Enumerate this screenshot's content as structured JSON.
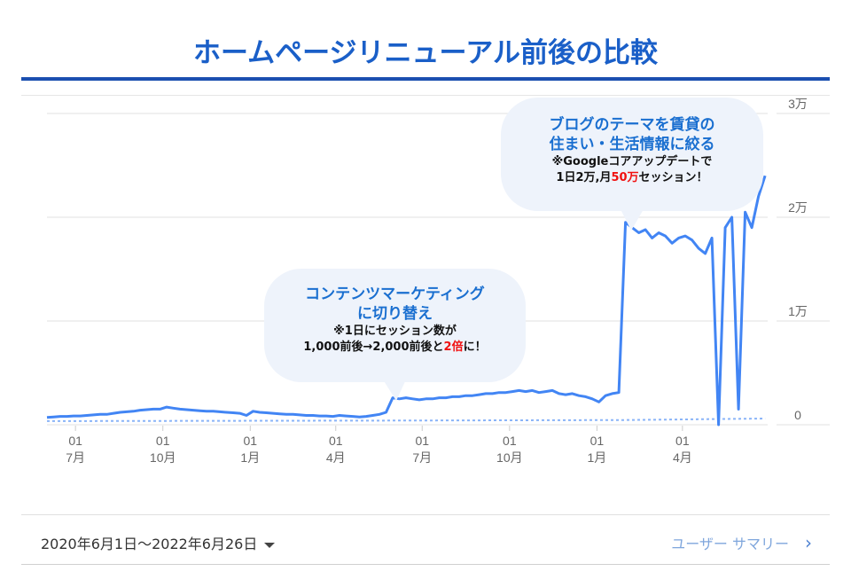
{
  "page": {
    "title": "ホームページリニューアル前後の比較"
  },
  "callouts": [
    {
      "head_lines": [
        "コンテンツマーケティング",
        "に切り替え"
      ],
      "note_line1": "※1日にセッション数が",
      "note_line2_pre": "1,000前後→2,000前後と",
      "note_line2_red": "2倍",
      "note_line2_post": "に！"
    },
    {
      "head_lines": [
        "ブログのテーマを賃貸の",
        "住まい・生活情報に絞る"
      ],
      "note_line1": "※Googleコアアップデートで",
      "note_line2_pre": "1日2万,月",
      "note_line2_red": "50万",
      "note_line2_post": "セッション！"
    }
  ],
  "footer": {
    "date_range": "2020年6月1日～2022年6月26日",
    "summary_link": "ユーザー サマリー",
    "summary_chevron": "›"
  },
  "chart_data": {
    "type": "line",
    "title": "",
    "start_date": "2020-06-01",
    "end_date": "2022-06-26",
    "x_step": "weekly",
    "ylim": [
      0,
      30000
    ],
    "y_ticks": [
      0,
      10000,
      20000,
      30000
    ],
    "y_tick_labels": [
      "0",
      "1万",
      "2万",
      "3万"
    ],
    "x_tick_labels": [
      {
        "day": "01",
        "month": "7月"
      },
      {
        "day": "01",
        "month": "10月"
      },
      {
        "day": "01",
        "month": "1月"
      },
      {
        "day": "01",
        "month": "4月"
      },
      {
        "day": "01",
        "month": "7月"
      },
      {
        "day": "01",
        "month": "10月"
      },
      {
        "day": "01",
        "month": "1月"
      },
      {
        "day": "01",
        "month": "4月"
      }
    ],
    "x_tick_days": [
      30,
      122,
      214,
      304,
      395,
      487,
      579,
      669
    ],
    "grid": true,
    "series": [
      {
        "name": "sessions",
        "color": "#4285f4",
        "style": "solid",
        "values": [
          700,
          750,
          800,
          800,
          850,
          850,
          900,
          950,
          1000,
          1000,
          1100,
          1200,
          1250,
          1300,
          1400,
          1450,
          1500,
          1500,
          1700,
          1600,
          1500,
          1450,
          1400,
          1350,
          1300,
          1300,
          1250,
          1200,
          1150,
          1100,
          900,
          1300,
          1200,
          1150,
          1100,
          1050,
          1000,
          1000,
          950,
          900,
          900,
          850,
          850,
          800,
          900,
          850,
          800,
          750,
          800,
          900,
          1000,
          1200,
          2600,
          2500,
          2600,
          2500,
          2400,
          2500,
          2500,
          2600,
          2600,
          2700,
          2700,
          2800,
          2800,
          2900,
          3000,
          3000,
          3100,
          3100,
          3200,
          3300,
          3200,
          3300,
          3100,
          3200,
          3300,
          3000,
          2900,
          3000,
          2800,
          2700,
          2500,
          2200,
          2800,
          3000,
          3100,
          19500,
          19000,
          18500,
          18800,
          18000,
          18500,
          18200,
          17500,
          18000,
          18200,
          17800,
          17000,
          16500,
          18000,
          0,
          19000,
          20000,
          1500,
          20500,
          19000,
          22000,
          24000
        ]
      },
      {
        "name": "comparison",
        "color": "#8ab4f8",
        "style": "dotted",
        "anchor_weeks": [
          0,
          52,
          87,
          108
        ],
        "values": [
          350,
          400,
          450,
          600
        ]
      }
    ]
  }
}
